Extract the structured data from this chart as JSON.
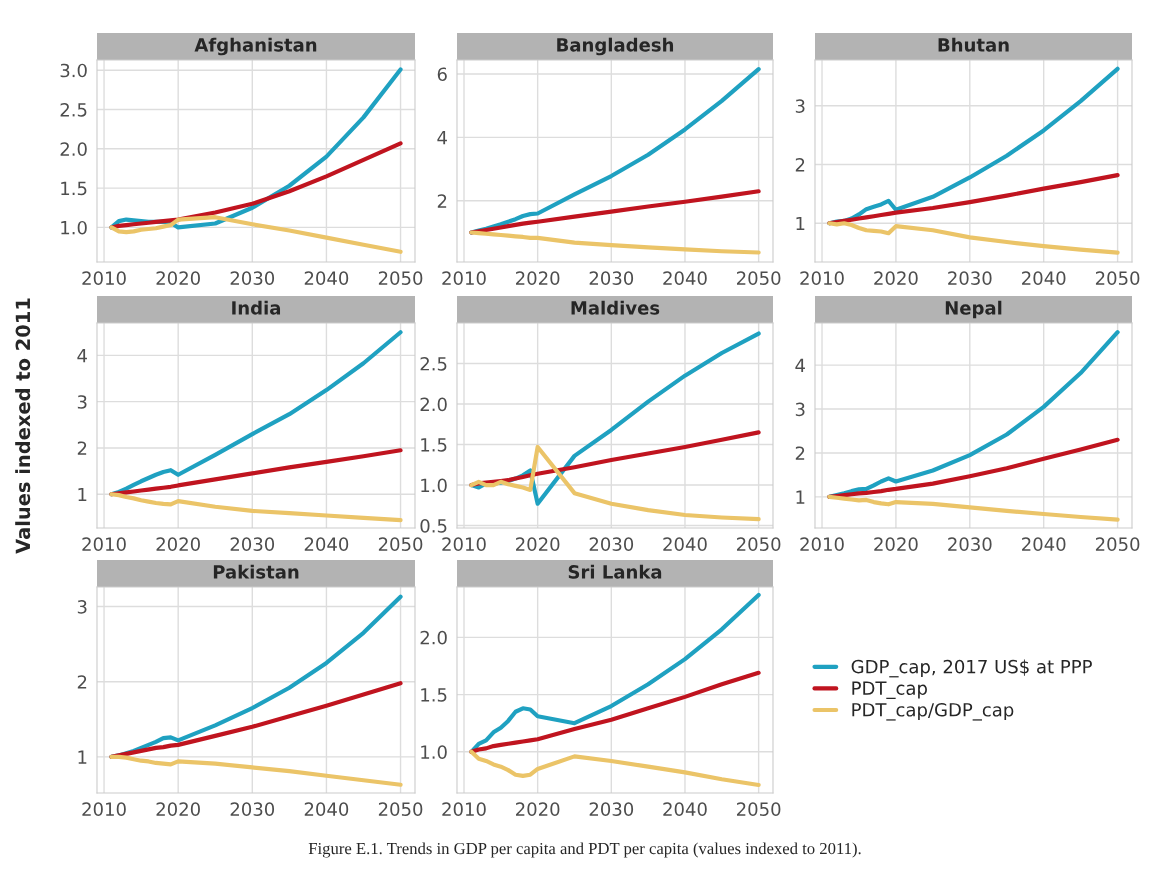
{
  "chart_data": [
    {
      "type": "line",
      "title": "Afghanistan",
      "x": [
        2011,
        2012,
        2013,
        2014,
        2015,
        2016,
        2017,
        2018,
        2019,
        2020,
        2025,
        2030,
        2035,
        2040,
        2045,
        2050
      ],
      "xlim": [
        2009.05,
        2051.95
      ],
      "xticks": [
        2010,
        2020,
        2030,
        2040,
        2050
      ],
      "ylim": [
        0.56,
        3.13
      ],
      "yticks": [
        {
          "value": 1,
          "label": "1.0"
        },
        1.5,
        {
          "value": 2,
          "label": "2.0"
        },
        2.5,
        {
          "value": 3,
          "label": "3.0"
        }
      ],
      "grid": true,
      "line_style": "solid",
      "marker": "none",
      "series": [
        {
          "color": "#1fa1c1",
          "values": [
            1.0,
            1.08,
            1.1,
            1.09,
            1.08,
            1.07,
            1.07,
            1.07,
            1.06,
            1.0,
            1.05,
            1.25,
            1.53,
            1.9,
            2.4,
            3.01
          ]
        },
        {
          "color": "#c0141f",
          "values": [
            1.0,
            1.02,
            1.03,
            1.04,
            1.05,
            1.06,
            1.07,
            1.08,
            1.09,
            1.1,
            1.19,
            1.3,
            1.46,
            1.65,
            1.86,
            2.07
          ]
        },
        {
          "color": "#ebc468",
          "values": [
            1.0,
            0.95,
            0.94,
            0.95,
            0.97,
            0.98,
            0.99,
            1.01,
            1.03,
            1.1,
            1.13,
            1.04,
            0.96,
            0.87,
            0.78,
            0.69
          ]
        }
      ]
    },
    {
      "type": "line",
      "title": "Bangladesh",
      "x": [
        2011,
        2012,
        2013,
        2014,
        2015,
        2016,
        2017,
        2018,
        2019,
        2020,
        2025,
        2030,
        2035,
        2040,
        2045,
        2050
      ],
      "xlim": [
        2009.05,
        2051.95
      ],
      "xticks": [
        2010,
        2020,
        2030,
        2040,
        2050
      ],
      "ylim": [
        0.07,
        6.44
      ],
      "yticks": [
        2,
        4,
        6
      ],
      "grid": true,
      "line_style": "solid",
      "marker": "none",
      "series": [
        {
          "color": "#1fa1c1",
          "values": [
            1.0,
            1.06,
            1.12,
            1.19,
            1.26,
            1.34,
            1.42,
            1.52,
            1.58,
            1.6,
            2.2,
            2.78,
            3.45,
            4.25,
            5.15,
            6.15
          ]
        },
        {
          "color": "#c0141f",
          "values": [
            1.0,
            1.04,
            1.08,
            1.12,
            1.16,
            1.2,
            1.24,
            1.28,
            1.31,
            1.34,
            1.5,
            1.66,
            1.82,
            1.97,
            2.13,
            2.3
          ]
        },
        {
          "color": "#ebc468",
          "values": [
            1.0,
            0.98,
            0.96,
            0.94,
            0.92,
            0.9,
            0.88,
            0.86,
            0.83,
            0.83,
            0.68,
            0.6,
            0.53,
            0.47,
            0.41,
            0.37
          ]
        }
      ]
    },
    {
      "type": "line",
      "title": "Bhutan",
      "x": [
        2011,
        2012,
        2013,
        2014,
        2015,
        2016,
        2017,
        2018,
        2019,
        2020,
        2025,
        2030,
        2035,
        2040,
        2045,
        2050
      ],
      "xlim": [
        2009.05,
        2051.95
      ],
      "xticks": [
        2010,
        2020,
        2030,
        2040,
        2050
      ],
      "ylim": [
        0.34,
        3.78
      ],
      "yticks": [
        1,
        2,
        3
      ],
      "grid": true,
      "line_style": "solid",
      "marker": "none",
      "series": [
        {
          "color": "#1fa1c1",
          "values": [
            1.0,
            1.03,
            1.04,
            1.08,
            1.15,
            1.24,
            1.28,
            1.32,
            1.38,
            1.23,
            1.45,
            1.78,
            2.15,
            2.58,
            3.08,
            3.63
          ]
        },
        {
          "color": "#c0141f",
          "values": [
            1.0,
            1.02,
            1.04,
            1.06,
            1.08,
            1.1,
            1.12,
            1.14,
            1.16,
            1.18,
            1.26,
            1.36,
            1.47,
            1.59,
            1.7,
            1.82
          ]
        },
        {
          "color": "#ebc468",
          "values": [
            1.0,
            0.98,
            1.0,
            0.97,
            0.92,
            0.88,
            0.87,
            0.86,
            0.83,
            0.95,
            0.88,
            0.76,
            0.68,
            0.61,
            0.55,
            0.5
          ]
        }
      ]
    },
    {
      "type": "line",
      "title": "India",
      "ylabel": "Values indexed to 2011",
      "x": [
        2011,
        2012,
        2013,
        2014,
        2015,
        2016,
        2017,
        2018,
        2019,
        2020,
        2025,
        2030,
        2035,
        2040,
        2045,
        2050
      ],
      "xlim": [
        2009.05,
        2051.95
      ],
      "xticks": [
        2010,
        2020,
        2030,
        2040,
        2050
      ],
      "ylim": [
        0.27,
        4.7
      ],
      "yticks": [
        1,
        2,
        3,
        4
      ],
      "grid": true,
      "line_style": "solid",
      "marker": "none",
      "series": [
        {
          "color": "#1fa1c1",
          "values": [
            1.0,
            1.05,
            1.12,
            1.2,
            1.28,
            1.35,
            1.42,
            1.48,
            1.52,
            1.42,
            1.85,
            2.3,
            2.73,
            3.25,
            3.83,
            4.5
          ]
        },
        {
          "color": "#c0141f",
          "values": [
            1.0,
            1.02,
            1.04,
            1.06,
            1.08,
            1.1,
            1.12,
            1.14,
            1.16,
            1.19,
            1.32,
            1.45,
            1.58,
            1.7,
            1.82,
            1.95
          ]
        },
        {
          "color": "#ebc468",
          "values": [
            1.0,
            0.98,
            0.94,
            0.91,
            0.87,
            0.84,
            0.81,
            0.79,
            0.78,
            0.85,
            0.73,
            0.64,
            0.59,
            0.54,
            0.49,
            0.44
          ]
        }
      ]
    },
    {
      "type": "line",
      "title": "Maldives",
      "x": [
        2011,
        2012,
        2013,
        2014,
        2015,
        2016,
        2017,
        2018,
        2019,
        2020,
        2025,
        2030,
        2035,
        2040,
        2045,
        2050
      ],
      "xlim": [
        2009.05,
        2051.95
      ],
      "xticks": [
        2010,
        2020,
        2030,
        2040,
        2050
      ],
      "ylim": [
        0.47,
        3.0
      ],
      "yticks": [
        0.5,
        {
          "value": 1,
          "label": "1.0"
        },
        1.5,
        {
          "value": 2,
          "label": "2.0"
        },
        2.5
      ],
      "grid": true,
      "line_style": "solid",
      "marker": "none",
      "series": [
        {
          "color": "#1fa1c1",
          "values": [
            1.0,
            0.97,
            1.02,
            1.02,
            1.03,
            1.05,
            1.08,
            1.12,
            1.18,
            0.77,
            1.36,
            1.68,
            2.03,
            2.35,
            2.63,
            2.87
          ]
        },
        {
          "color": "#c0141f",
          "values": [
            1.0,
            1.02,
            1.03,
            1.04,
            1.05,
            1.06,
            1.08,
            1.1,
            1.12,
            1.14,
            1.22,
            1.31,
            1.39,
            1.47,
            1.56,
            1.65
          ]
        },
        {
          "color": "#ebc468",
          "values": [
            1.0,
            1.04,
            1.0,
            1.0,
            1.04,
            1.01,
            0.99,
            0.97,
            0.94,
            1.47,
            0.9,
            0.77,
            0.69,
            0.63,
            0.6,
            0.58
          ]
        }
      ]
    },
    {
      "type": "line",
      "title": "Nepal",
      "x": [
        2011,
        2012,
        2013,
        2014,
        2015,
        2016,
        2017,
        2018,
        2019,
        2020,
        2025,
        2030,
        2035,
        2040,
        2045,
        2050
      ],
      "xlim": [
        2009.05,
        2051.95
      ],
      "xticks": [
        2010,
        2020,
        2030,
        2040,
        2050
      ],
      "ylim": [
        0.29,
        4.96
      ],
      "yticks": [
        1,
        2,
        3,
        4
      ],
      "grid": true,
      "line_style": "solid",
      "marker": "none",
      "series": [
        {
          "color": "#1fa1c1",
          "values": [
            1.0,
            1.04,
            1.08,
            1.13,
            1.17,
            1.18,
            1.26,
            1.35,
            1.42,
            1.35,
            1.6,
            1.95,
            2.42,
            3.05,
            3.82,
            4.75
          ]
        },
        {
          "color": "#c0141f",
          "values": [
            1.0,
            1.02,
            1.04,
            1.06,
            1.08,
            1.09,
            1.11,
            1.13,
            1.16,
            1.18,
            1.3,
            1.47,
            1.65,
            1.87,
            2.08,
            2.3
          ]
        },
        {
          "color": "#ebc468",
          "values": [
            1.0,
            0.98,
            0.96,
            0.94,
            0.92,
            0.93,
            0.88,
            0.85,
            0.83,
            0.88,
            0.84,
            0.76,
            0.68,
            0.61,
            0.54,
            0.48
          ]
        }
      ]
    },
    {
      "type": "line",
      "title": "Pakistan",
      "x": [
        2011,
        2012,
        2013,
        2014,
        2015,
        2016,
        2017,
        2018,
        2019,
        2020,
        2025,
        2030,
        2035,
        2040,
        2045,
        2050
      ],
      "xlim": [
        2009.05,
        2051.95
      ],
      "xticks": [
        2010,
        2020,
        2030,
        2040,
        2050
      ],
      "ylim": [
        0.52,
        3.26
      ],
      "yticks": [
        1,
        2,
        3
      ],
      "grid": true,
      "line_style": "solid",
      "marker": "none",
      "series": [
        {
          "color": "#1fa1c1",
          "values": [
            1.0,
            1.02,
            1.05,
            1.08,
            1.12,
            1.16,
            1.2,
            1.25,
            1.26,
            1.22,
            1.42,
            1.65,
            1.92,
            2.25,
            2.65,
            3.13
          ]
        },
        {
          "color": "#c0141f",
          "values": [
            1.0,
            1.02,
            1.04,
            1.06,
            1.08,
            1.1,
            1.12,
            1.13,
            1.15,
            1.16,
            1.28,
            1.4,
            1.54,
            1.68,
            1.83,
            1.98
          ]
        },
        {
          "color": "#ebc468",
          "values": [
            1.0,
            1.0,
            0.99,
            0.97,
            0.95,
            0.94,
            0.92,
            0.91,
            0.9,
            0.94,
            0.91,
            0.86,
            0.81,
            0.75,
            0.69,
            0.63
          ]
        }
      ]
    },
    {
      "type": "line",
      "title": "Sri Lanka",
      "x": [
        2011,
        2012,
        2013,
        2014,
        2015,
        2016,
        2017,
        2018,
        2019,
        2020,
        2025,
        2030,
        2035,
        2040,
        2045,
        2050
      ],
      "xlim": [
        2009.05,
        2051.95
      ],
      "xticks": [
        2010,
        2020,
        2030,
        2040,
        2050
      ],
      "ylim": [
        0.64,
        2.44
      ],
      "yticks": [
        {
          "value": 1,
          "label": "1.0"
        },
        1.5,
        {
          "value": 2,
          "label": "2.0"
        }
      ],
      "grid": true,
      "line_style": "solid",
      "marker": "none",
      "legend": "right",
      "annotations": [
        "Figure E.1. Trends in GDP per capita and PDT per capita (values indexed to 2011)."
      ],
      "series": [
        {
          "name": "GDP_cap, 2017 US$ at PPP",
          "color": "#1fa1c1",
          "values": [
            1.0,
            1.07,
            1.1,
            1.17,
            1.21,
            1.27,
            1.35,
            1.38,
            1.37,
            1.31,
            1.25,
            1.4,
            1.59,
            1.81,
            2.07,
            2.37
          ]
        },
        {
          "name": "PDT_cap",
          "color": "#c0141f",
          "values": [
            1.0,
            1.02,
            1.03,
            1.05,
            1.06,
            1.07,
            1.08,
            1.09,
            1.1,
            1.11,
            1.2,
            1.28,
            1.38,
            1.48,
            1.59,
            1.69
          ]
        },
        {
          "name": "PDT_cap/GDP_cap",
          "color": "#ebc468",
          "values": [
            1.0,
            0.94,
            0.92,
            0.89,
            0.87,
            0.84,
            0.8,
            0.79,
            0.8,
            0.85,
            0.96,
            0.92,
            0.87,
            0.82,
            0.76,
            0.71
          ]
        }
      ]
    }
  ]
}
